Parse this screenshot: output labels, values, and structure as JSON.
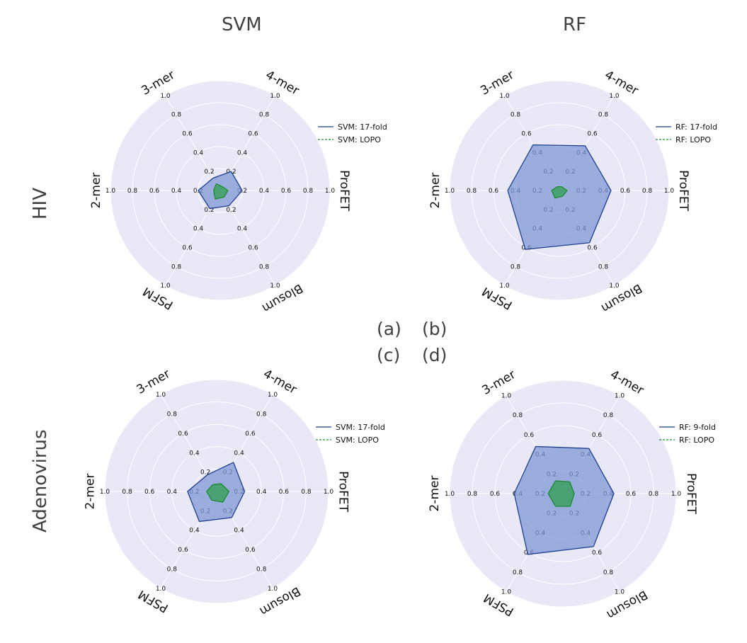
{
  "columns": [
    "SVM",
    "RF"
  ],
  "rows": [
    "HIV",
    "Adenovirus"
  ],
  "panel_labels": [
    "(a)",
    "(b)",
    "(c)",
    "(d)"
  ],
  "colors": {
    "panel_background": "#e8e8f6",
    "grid": "#ffffff",
    "cv_line": "#1f3f8f",
    "cv_fill": "#7f98d4",
    "lopo_line": "#1c8a30",
    "lopo_fill": "#3aa060"
  },
  "chart_data": [
    {
      "type": "radar",
      "panel": "(a)",
      "axes": [
        "ProFET",
        "4-mer",
        "3-mer",
        "2-mer",
        "PSFM",
        "Blosum"
      ],
      "rlim": [
        0,
        1.0
      ],
      "ticks": [
        "0.2",
        "0.4",
        "0.6",
        "0.8",
        "1.0"
      ],
      "grid": true,
      "legend": "right",
      "series": [
        {
          "name": "SVM: 17-fold",
          "values": [
            0.2,
            0.2,
            0.13,
            0.2,
            0.19,
            0.16
          ]
        },
        {
          "name": "SVM: LOPO",
          "values": [
            0.07,
            0.04,
            0.07,
            0.06,
            0.09,
            0.07
          ]
        }
      ]
    },
    {
      "type": "radar",
      "panel": "(b)",
      "axes": [
        "ProFET",
        "4-mer",
        "3-mer",
        "2-mer",
        "PSFM",
        "Blosum"
      ],
      "rlim": [
        0,
        1.0
      ],
      "ticks": [
        "0.2",
        "0.4",
        "0.6",
        "0.8",
        "1.0"
      ],
      "grid": true,
      "legend": "right",
      "series": [
        {
          "name": "RF: 17-fold",
          "values": [
            0.47,
            0.47,
            0.48,
            0.47,
            0.62,
            0.55
          ]
        },
        {
          "name": "RF: LOPO",
          "values": [
            0.07,
            0.04,
            0.04,
            0.07,
            0.08,
            0.06
          ]
        }
      ]
    },
    {
      "type": "radar",
      "panel": "(c)",
      "axes": [
        "ProFET",
        "4-mer",
        "3-mer",
        "2-mer",
        "PSFM",
        "Blosum"
      ],
      "rlim": [
        0,
        1.0
      ],
      "ticks": [
        "0.2",
        "0.4",
        "0.6",
        "0.8",
        "1.0"
      ],
      "grid": true,
      "legend": "right",
      "series": [
        {
          "name": "SVM: 17-fold",
          "values": [
            0.25,
            0.3,
            0.17,
            0.26,
            0.31,
            0.27
          ]
        },
        {
          "name": "SVM: LOPO",
          "values": [
            0.11,
            0.08,
            0.07,
            0.09,
            0.09,
            0.11
          ]
        }
      ]
    },
    {
      "type": "radar",
      "panel": "(d)",
      "axes": [
        "ProFET",
        "4-mer",
        "3-mer",
        "2-mer",
        "PSFM",
        "Blosum"
      ],
      "rlim": [
        0,
        1.0
      ],
      "ticks": [
        "0.2",
        "0.4",
        "0.6",
        "0.8",
        "1.0"
      ],
      "grid": true,
      "legend": "right",
      "series": [
        {
          "name": "RF: 9-fold",
          "values": [
            0.45,
            0.46,
            0.48,
            0.43,
            0.62,
            0.54
          ]
        },
        {
          "name": "RF: LOPO",
          "values": [
            0.1,
            0.12,
            0.13,
            0.13,
            0.13,
            0.13
          ]
        }
      ]
    }
  ]
}
